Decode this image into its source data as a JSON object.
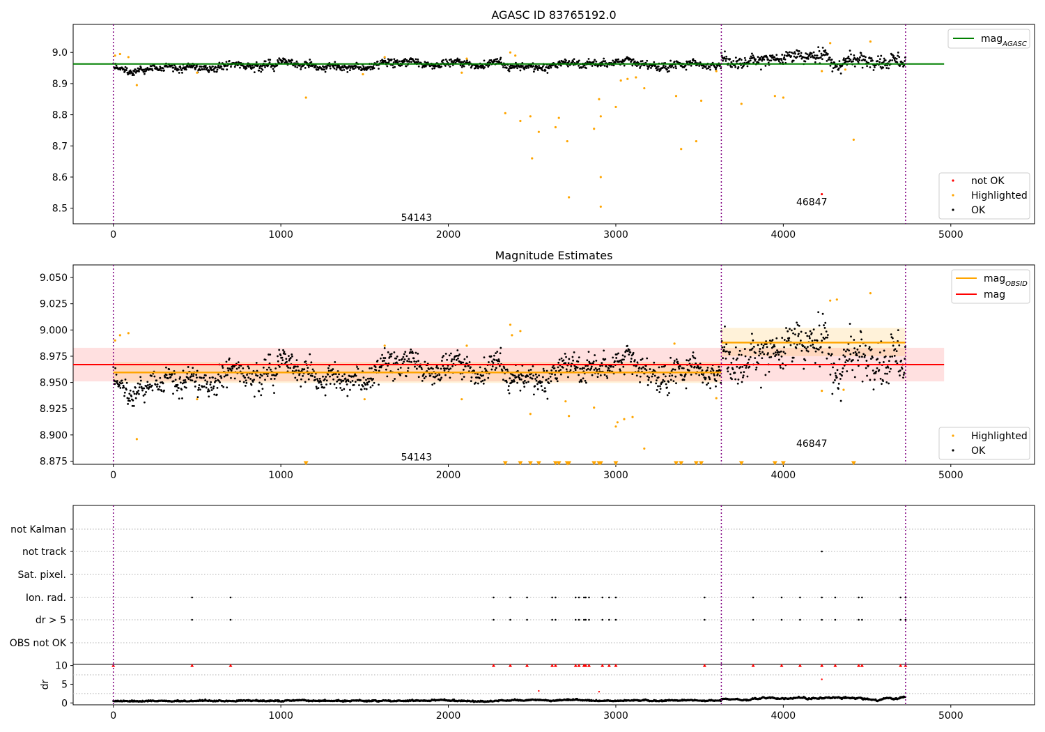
{
  "charts": {
    "agasc": {
      "title": "AGASC ID 83765192.0",
      "xlim": [
        -240,
        5500
      ],
      "ylim": [
        8.45,
        9.09
      ],
      "xticks": [
        0,
        1000,
        2000,
        3000,
        4000,
        5000
      ],
      "yticks": [
        8.5,
        8.6,
        8.7,
        8.8,
        8.9,
        9.0
      ],
      "ytick_labels": [
        "8.5",
        "8.6",
        "8.7",
        "8.8",
        "8.9",
        "9.0"
      ],
      "agasc_mag": 8.963,
      "agasc_line_x": [
        -240,
        4960
      ],
      "obsid_boundaries": [
        0,
        3630,
        4730
      ],
      "obsid_labels": [
        {
          "x": 1810,
          "y": 8.47,
          "text": "54143"
        },
        {
          "x": 4170,
          "y": 8.52,
          "text": "46847"
        }
      ],
      "legend_top": [
        {
          "label": "mag",
          "sub": "AGASC",
          "color": "#008000"
        }
      ],
      "legend_bottom": [
        {
          "label": "not OK",
          "color": "#ff0000"
        },
        {
          "label": "Highlighted",
          "color": "#ffa500"
        },
        {
          "label": "OK",
          "color": "#000000"
        }
      ],
      "highlighted": [
        [
          10,
          8.99
        ],
        [
          40,
          8.995
        ],
        [
          90,
          8.985
        ],
        [
          140,
          8.895
        ],
        [
          500,
          8.935
        ],
        [
          1150,
          8.855
        ],
        [
          1490,
          8.93
        ],
        [
          1620,
          8.985
        ],
        [
          2080,
          8.935
        ],
        [
          2110,
          8.98
        ],
        [
          2340,
          8.805
        ],
        [
          2370,
          9.0
        ],
        [
          2400,
          8.99
        ],
        [
          2430,
          8.78
        ],
        [
          2490,
          8.795
        ],
        [
          2500,
          8.66
        ],
        [
          2540,
          8.745
        ],
        [
          2640,
          8.76
        ],
        [
          2660,
          8.79
        ],
        [
          2710,
          8.715
        ],
        [
          2720,
          8.535
        ],
        [
          2870,
          8.755
        ],
        [
          2900,
          8.85
        ],
        [
          2910,
          8.795
        ],
        [
          2910,
          8.6
        ],
        [
          2910,
          8.505
        ],
        [
          3000,
          8.825
        ],
        [
          3030,
          8.91
        ],
        [
          3070,
          8.915
        ],
        [
          3120,
          8.92
        ],
        [
          3170,
          8.885
        ],
        [
          3360,
          8.86
        ],
        [
          3390,
          8.69
        ],
        [
          3480,
          8.715
        ],
        [
          3510,
          8.845
        ],
        [
          3600,
          8.94
        ],
        [
          3750,
          8.835
        ],
        [
          3950,
          8.86
        ],
        [
          4000,
          8.855
        ],
        [
          4230,
          8.94
        ],
        [
          4280,
          9.03
        ],
        [
          4370,
          8.945
        ],
        [
          4420,
          8.72
        ],
        [
          4520,
          9.035
        ]
      ],
      "not_ok": [
        [
          4230,
          8.545
        ]
      ]
    },
    "magest": {
      "title": "Magnitude Estimates",
      "xlim": [
        -240,
        5500
      ],
      "ylim": [
        8.872,
        9.062
      ],
      "xticks": [
        0,
        1000,
        2000,
        3000,
        4000,
        5000
      ],
      "yticks": [
        8.875,
        8.9,
        8.925,
        8.95,
        8.975,
        9.0,
        9.025,
        9.05
      ],
      "ytick_labels": [
        "8.875",
        "8.900",
        "8.925",
        "8.950",
        "8.975",
        "9.000",
        "9.025",
        "9.050"
      ],
      "mag": 8.967,
      "mag_band": [
        8.951,
        8.983
      ],
      "mag_line_x": [
        -240,
        4960
      ],
      "obsid_mag_segments": [
        {
          "x0": 0,
          "x1": 3630,
          "mag": 8.9595
        },
        {
          "x0": 3630,
          "x1": 4730,
          "mag": 8.988
        }
      ],
      "obsid_bands": [
        {
          "x0": 0,
          "x1": 3630,
          "lo": 8.9495,
          "hi": 8.9695
        },
        {
          "x0": 3630,
          "x1": 4730,
          "lo": 8.975,
          "hi": 9.002
        }
      ],
      "obsid_boundaries": [
        0,
        3630,
        4730
      ],
      "obsid_labels": [
        {
          "x": 1810,
          "y": 8.879,
          "text": "54143"
        },
        {
          "x": 4170,
          "y": 8.892,
          "text": "46847"
        }
      ],
      "legend_top": [
        {
          "label": "mag",
          "sub": "OBSID",
          "color": "#ffa500"
        },
        {
          "label": "mag",
          "sub": "",
          "color": "#ff0000"
        }
      ],
      "legend_bottom": [
        {
          "label": "Highlighted",
          "color": "#ffa500"
        },
        {
          "label": "OK",
          "color": "#000000"
        }
      ],
      "highlighted": [
        [
          10,
          8.99
        ],
        [
          40,
          8.995
        ],
        [
          90,
          8.997
        ],
        [
          140,
          8.896
        ],
        [
          500,
          8.934
        ],
        [
          1500,
          8.934
        ],
        [
          1620,
          8.985
        ],
        [
          2080,
          8.934
        ],
        [
          2110,
          8.985
        ],
        [
          2370,
          9.005
        ],
        [
          2380,
          8.995
        ],
        [
          2430,
          8.999
        ],
        [
          2490,
          8.92
        ],
        [
          2700,
          8.932
        ],
        [
          2720,
          8.918
        ],
        [
          2870,
          8.926
        ],
        [
          3000,
          8.908
        ],
        [
          3010,
          8.912
        ],
        [
          3050,
          8.915
        ],
        [
          3100,
          8.917
        ],
        [
          3170,
          8.887
        ],
        [
          3350,
          8.987
        ],
        [
          3600,
          8.935
        ],
        [
          4230,
          8.942
        ],
        [
          4280,
          9.028
        ],
        [
          4320,
          9.029
        ],
        [
          4360,
          8.943
        ],
        [
          4520,
          9.035
        ]
      ],
      "low_markers_y": 8.873,
      "low_markers_x": [
        1150,
        2340,
        2430,
        2490,
        2540,
        2640,
        2660,
        2710,
        2720,
        2870,
        2900,
        2910,
        3000,
        3360,
        3390,
        3480,
        3510,
        3750,
        3950,
        4000,
        4420
      ]
    },
    "flags": {
      "xlim": [
        -240,
        5500
      ],
      "xticks": [
        0,
        1000,
        2000,
        3000,
        4000,
        5000
      ],
      "rows": [
        "not Kalman",
        "not track",
        "Sat. pixel.",
        "Ion. rad.",
        "dr > 5",
        "OBS not OK"
      ],
      "obsid_boundaries": [
        0,
        3630,
        4730
      ],
      "not_track": [
        4230
      ],
      "ion_rad": [
        470,
        700,
        2270,
        2370,
        2470,
        2620,
        2640,
        2760,
        2780,
        2810,
        2820,
        2840,
        2920,
        2960,
        3000,
        3530,
        3820,
        3990,
        4100,
        4230,
        4310,
        4450,
        4470,
        4700,
        4730
      ],
      "dr_gt5": [
        470,
        700,
        2270,
        2370,
        2470,
        2620,
        2640,
        2760,
        2780,
        2810,
        2820,
        2840,
        2920,
        2960,
        3000,
        3530,
        3820,
        3990,
        4100,
        4230,
        4310,
        4450,
        4470,
        4700,
        4730
      ]
    },
    "dr": {
      "ylabel": "dr",
      "ylim": [
        -0.5,
        10.3
      ],
      "yticks": [
        0,
        5,
        10
      ],
      "xlim": [
        -240,
        5500
      ],
      "xticks": [
        0,
        1000,
        2000,
        3000,
        4000,
        5000
      ],
      "obsid_boundaries": [
        0,
        3630,
        4730
      ],
      "capped_y": 10,
      "capped_x": [
        0,
        470,
        700,
        2270,
        2370,
        2470,
        2620,
        2640,
        2760,
        2780,
        2810,
        2820,
        2840,
        2920,
        2960,
        3000,
        3530,
        3820,
        3990,
        4100,
        4230,
        4310,
        4450,
        4470,
        4700,
        4730
      ],
      "red_points": [
        [
          2540,
          3.2
        ],
        [
          2900,
          3.0
        ],
        [
          4230,
          6.3
        ]
      ]
    }
  },
  "colors": {
    "ok": "#000000",
    "highlighted": "#ffa500",
    "not_ok": "#ff0000",
    "agasc_line": "#008000",
    "mag_line": "#ff0000",
    "obsid_line": "#ffa500",
    "boundary": "#800080",
    "grid": "#b0b0b0"
  }
}
